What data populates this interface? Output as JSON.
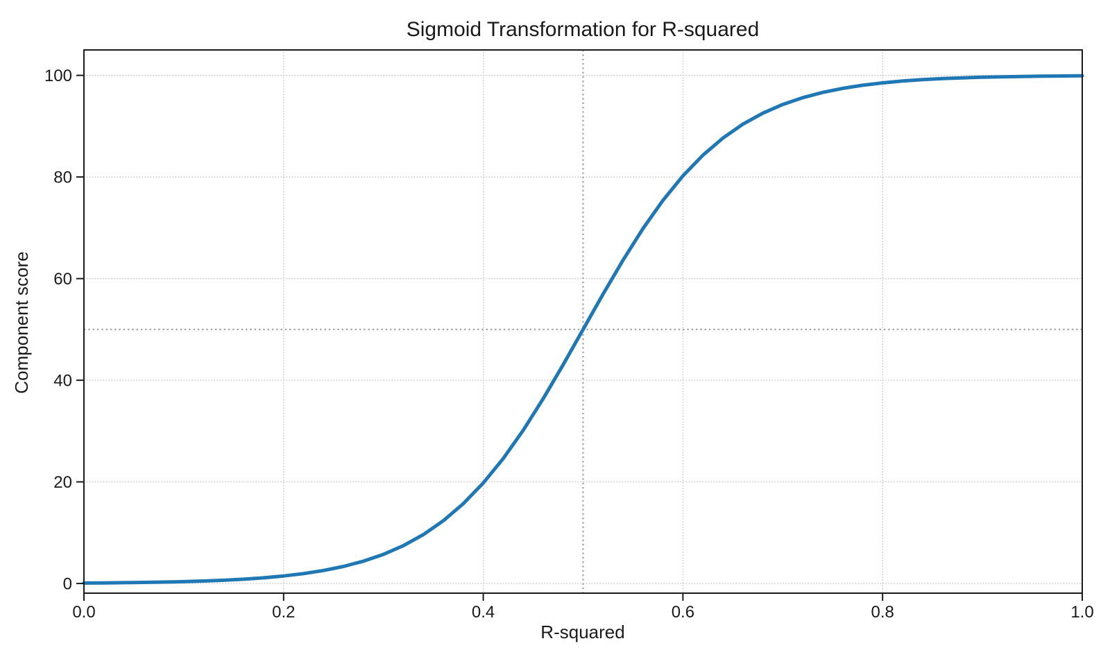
{
  "figure": {
    "background": "#ffffff"
  },
  "chart_data": {
    "type": "line",
    "title": "Sigmoid Transformation for R-squared",
    "xlabel": "R-squared",
    "ylabel": "Component score",
    "xlim": [
      0.0,
      1.0
    ],
    "ylim": [
      -1.9,
      105.0
    ],
    "grid": true,
    "legend": "none",
    "xticks": [
      "0.0",
      "0.2",
      "0.4",
      "0.6",
      "0.8",
      "1.0"
    ],
    "xtick_values": [
      0.0,
      0.2,
      0.4,
      0.6,
      0.8,
      1.0
    ],
    "yticks": [
      "0",
      "20",
      "40",
      "60",
      "80",
      "100"
    ],
    "ytick_values": [
      0,
      20,
      40,
      60,
      80,
      100
    ],
    "colors": {
      "curve": "#1f77b4",
      "grid": "#c8c8c8",
      "reference": "#a6a6a6",
      "axis": "#1a1a1a",
      "text": "#1a1a1a"
    },
    "series": [
      {
        "name": "sigmoid",
        "color": "#1f77b4",
        "line_width": 5,
        "formula": "y = 100 / (1 + exp(-14 * (x - 0.5)))",
        "x": [
          0.0,
          0.02,
          0.04,
          0.06,
          0.08,
          0.1,
          0.12,
          0.14,
          0.16,
          0.18,
          0.2,
          0.22,
          0.24,
          0.26,
          0.28,
          0.3,
          0.32,
          0.34,
          0.36,
          0.38,
          0.4,
          0.42,
          0.44,
          0.46,
          0.48,
          0.5,
          0.52,
          0.54,
          0.56,
          0.58,
          0.6,
          0.62,
          0.64,
          0.66,
          0.68,
          0.7,
          0.72,
          0.74,
          0.76,
          0.78,
          0.8,
          0.82,
          0.84,
          0.86,
          0.88,
          0.9,
          0.92,
          0.94,
          0.96,
          0.98,
          1.0
        ],
        "y": [
          0.09,
          0.12,
          0.16,
          0.21,
          0.28,
          0.37,
          0.49,
          0.64,
          0.85,
          1.12,
          1.48,
          1.95,
          2.56,
          3.36,
          4.39,
          5.73,
          7.45,
          9.62,
          12.35,
          15.71,
          19.78,
          24.6,
          30.15,
          36.35,
          43.05,
          50.0,
          56.95,
          63.65,
          69.85,
          75.4,
          80.22,
          84.29,
          87.65,
          90.38,
          92.55,
          94.27,
          95.61,
          96.64,
          97.44,
          98.05,
          98.52,
          98.88,
          99.15,
          99.36,
          99.51,
          99.63,
          99.72,
          99.79,
          99.84,
          99.88,
          99.91
        ]
      }
    ],
    "reference_lines": [
      {
        "axis": "x",
        "value": 0.5,
        "style": "dotted",
        "color": "#a6a6a6"
      },
      {
        "axis": "y",
        "value": 50,
        "style": "dotted",
        "color": "#a6a6a6"
      }
    ]
  }
}
